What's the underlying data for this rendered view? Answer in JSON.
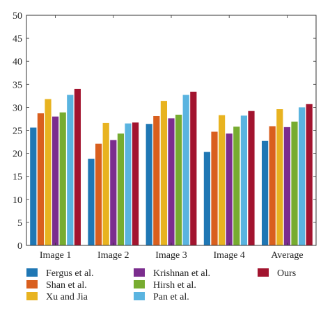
{
  "chart_data": {
    "type": "bar",
    "categories": [
      "Image 1",
      "Image 2",
      "Image 3",
      "Image 4",
      "Average"
    ],
    "ylim": [
      0,
      50
    ],
    "yticks": [
      0,
      5,
      10,
      15,
      20,
      25,
      30,
      35,
      40,
      45,
      50
    ],
    "grid": false,
    "legend_position": "bottom",
    "series": [
      {
        "name": "Fergus et al.",
        "color": "#1f77b4",
        "values": [
          25.6,
          18.8,
          26.4,
          20.3,
          22.7
        ]
      },
      {
        "name": "Shan et al.",
        "color": "#d95f1e",
        "values": [
          28.7,
          22.1,
          28.1,
          24.7,
          25.9
        ]
      },
      {
        "name": "Xu and Jia",
        "color": "#e8b320",
        "values": [
          31.8,
          26.6,
          31.4,
          28.3,
          29.6
        ]
      },
      {
        "name": "Krishnan et al.",
        "color": "#7b2d8e",
        "values": [
          28.0,
          22.9,
          27.6,
          24.3,
          25.7
        ]
      },
      {
        "name": "Hirsh et al.",
        "color": "#77ac30",
        "values": [
          28.9,
          24.3,
          28.4,
          25.8,
          26.9
        ]
      },
      {
        "name": "Pan et al.",
        "color": "#5ab4e0",
        "values": [
          32.7,
          26.5,
          32.7,
          28.2,
          30.0
        ]
      },
      {
        "name": "Ours",
        "color": "#a2142f",
        "values": [
          34.0,
          26.7,
          33.4,
          29.2,
          30.7
        ]
      }
    ]
  }
}
